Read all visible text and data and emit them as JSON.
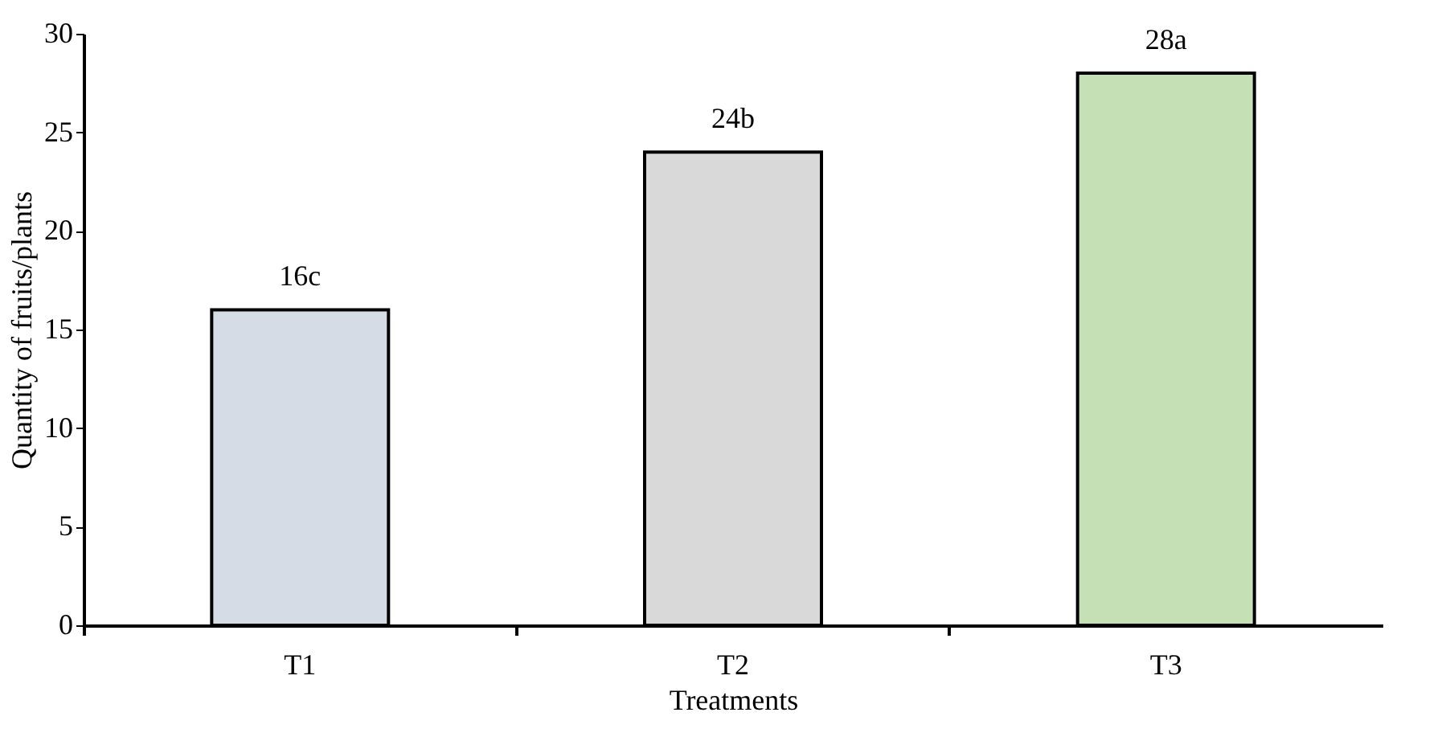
{
  "chart_data": {
    "type": "bar",
    "xlabel": "Treatments",
    "ylabel": "Quantity of fruits/plants",
    "categories": [
      "T1",
      "T2",
      "T3"
    ],
    "values": [
      16,
      24,
      28
    ],
    "colors": [
      "#d6dce5",
      "#d9d9d9",
      "#c5e0b4"
    ],
    "value_labels": [
      "16c",
      "24b",
      "28a"
    ],
    "ylim": [
      0,
      30
    ],
    "yticks": [
      0,
      5,
      10,
      15,
      20,
      25,
      30
    ],
    "grid": false
  }
}
